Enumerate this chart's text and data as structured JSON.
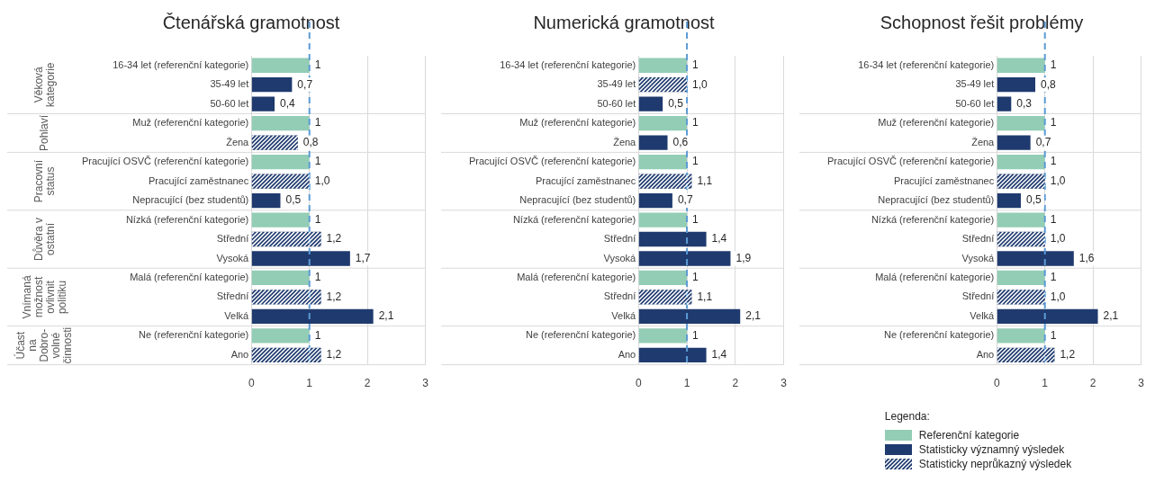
{
  "chart_data": [
    {
      "type": "bar",
      "orientation": "horizontal",
      "stacked": true,
      "title": "Čtenářská gramotnost",
      "categories": [
        "16-34 let (referenční kategorie)",
        "35-49 let",
        "50-60 let",
        "Muž (referenční kategorie)",
        "Žena",
        "Pracující OSVČ (referenční kategorie)",
        "Pracující zaměstnanec",
        "Nepracující (bez studentů)",
        "Nízká (referenční kategorie)",
        "Střední",
        "Vysoká",
        "Malá (referenční kategorie)",
        "Střední",
        "Velká",
        "Ne (referenční kategorie)",
        "Ano"
      ],
      "series": [
        {
          "color": "#93cdb6",
          "values": [
            1,
            null,
            null,
            1,
            null,
            1,
            null,
            null,
            1,
            null,
            null,
            1,
            null,
            null,
            1,
            null
          ],
          "value_labels": [
            "1",
            null,
            null,
            "1",
            null,
            "1",
            null,
            null,
            "1",
            null,
            null,
            "1",
            null,
            null,
            "1",
            null
          ]
        },
        {
          "color": "#1f3a6e",
          "values": [
            null,
            0.7,
            0.4,
            null,
            null,
            null,
            null,
            0.5,
            null,
            null,
            1.7,
            null,
            null,
            2.1,
            null,
            null
          ],
          "value_labels": [
            null,
            "0,7",
            "0,4",
            null,
            null,
            null,
            null,
            "0,5",
            null,
            null,
            "1,7",
            null,
            null,
            "2,1",
            null,
            null
          ]
        },
        {
          "color": "#1f3a6e",
          "values": [
            null,
            null,
            null,
            null,
            0.8,
            null,
            1.0,
            null,
            null,
            1.2,
            null,
            null,
            1.2,
            null,
            null,
            1.2
          ],
          "value_labels": [
            null,
            null,
            null,
            null,
            "0,8",
            null,
            "1,0",
            null,
            null,
            "1,2",
            null,
            null,
            "1,2",
            null,
            null,
            "1,2"
          ]
        }
      ],
      "xlim": [
        0,
        3
      ],
      "xticks": [
        0,
        1,
        2,
        3
      ],
      "grid": "x",
      "ref_lines": [
        {
          "axis": "x",
          "value": 1,
          "color": "#5b9bd5",
          "line_style": "dashed"
        }
      ],
      "annotations": [
        "Věková\nkategorie",
        "Pohlaví",
        "Pracovní\nstatus",
        "Důvěra v\nostatní",
        "Vnímaná\nmožnost\novlivnit\npolitiku",
        "Účast\nna\nDobro-\nvolné\nčinnosti"
      ]
    },
    {
      "type": "bar",
      "orientation": "horizontal",
      "stacked": true,
      "title": "Numerická gramotnost",
      "categories": [
        "16-34 let (referenční kategorie)",
        "35-49 let",
        "50-60 let",
        "Muž (referenční kategorie)",
        "Žena",
        "Pracující OSVČ (referenční kategorie)",
        "Pracující zaměstnanec",
        "Nepracující (bez studentů)",
        "Nízká (referenční kategorie)",
        "Střední",
        "Vysoká",
        "Malá (referenční kategorie)",
        "Střední",
        "Velká",
        "Ne (referenční kategorie)",
        "Ano"
      ],
      "series": [
        {
          "color": "#93cdb6",
          "values": [
            1,
            null,
            null,
            1,
            null,
            1,
            null,
            null,
            1,
            null,
            null,
            1,
            null,
            null,
            1,
            null
          ],
          "value_labels": [
            "1",
            null,
            null,
            "1",
            null,
            "1",
            null,
            null,
            "1",
            null,
            null,
            "1",
            null,
            null,
            "1",
            null
          ]
        },
        {
          "color": "#1f3a6e",
          "values": [
            null,
            null,
            0.5,
            null,
            0.6,
            null,
            null,
            0.7,
            null,
            1.4,
            1.9,
            null,
            null,
            2.1,
            null,
            1.4
          ],
          "value_labels": [
            null,
            null,
            "0,5",
            null,
            "0,6",
            null,
            null,
            "0,7",
            null,
            "1,4",
            "1,9",
            null,
            null,
            "2,1",
            null,
            "1,4"
          ]
        },
        {
          "color": "#1f3a6e",
          "values": [
            null,
            1.0,
            null,
            null,
            null,
            null,
            1.1,
            null,
            null,
            null,
            null,
            null,
            1.1,
            null,
            null,
            null
          ],
          "value_labels": [
            null,
            "1,0",
            null,
            null,
            null,
            null,
            "1,1",
            null,
            null,
            null,
            null,
            null,
            "1,1",
            null,
            null,
            null
          ]
        }
      ],
      "xlim": [
        0,
        3
      ],
      "xticks": [
        0,
        1,
        2,
        3
      ],
      "grid": "x",
      "ref_lines": [
        {
          "axis": "x",
          "value": 1,
          "color": "#5b9bd5",
          "line_style": "dashed"
        }
      ]
    },
    {
      "type": "bar",
      "orientation": "horizontal",
      "stacked": true,
      "title": "Schopnost řešit problémy",
      "categories": [
        "16-34 let (referenční kategorie)",
        "35-49 let",
        "50-60 let",
        "Muž (referenční kategorie)",
        "Žena",
        "Pracující OSVČ (referenční kategorie)",
        "Pracující zaměstnanec",
        "Nepracující (bez studentů)",
        "Nízká (referenční kategorie)",
        "Střední",
        "Vysoká",
        "Malá (referenční kategorie)",
        "Střední",
        "Velká",
        "Ne (referenční kategorie)",
        "Ano"
      ],
      "series": [
        {
          "name": "Referenční kategorie",
          "color": "#93cdb6",
          "values": [
            1,
            null,
            null,
            1,
            null,
            1,
            null,
            null,
            1,
            null,
            null,
            1,
            null,
            null,
            1,
            null
          ],
          "value_labels": [
            "1",
            null,
            null,
            "1",
            null,
            "1",
            null,
            null,
            "1",
            null,
            null,
            "1",
            null,
            null,
            "1",
            null
          ]
        },
        {
          "name": "Statisticky významný výsledek",
          "color": "#1f3a6e",
          "values": [
            null,
            0.8,
            0.3,
            null,
            0.7,
            null,
            null,
            0.5,
            null,
            null,
            1.6,
            null,
            null,
            2.1,
            null,
            null
          ],
          "value_labels": [
            null,
            "0,8",
            "0,3",
            null,
            "0,7",
            null,
            null,
            "0,5",
            null,
            null,
            "1,6",
            null,
            null,
            "2,1",
            null,
            null
          ]
        },
        {
          "name": "Statisticky neprůkazný výsledek",
          "color": "#1f3a6e",
          "values": [
            null,
            null,
            null,
            null,
            null,
            null,
            1.0,
            null,
            null,
            1.0,
            null,
            null,
            1.0,
            null,
            null,
            1.2
          ],
          "value_labels": [
            null,
            null,
            null,
            null,
            null,
            null,
            "1,0",
            null,
            null,
            "1,0",
            null,
            null,
            "1,0",
            null,
            null,
            "1,2"
          ]
        }
      ],
      "xlim": [
        0,
        3
      ],
      "xticks": [
        0,
        1,
        2,
        3
      ],
      "grid": "x",
      "legend": "bottom",
      "legend_title": "Legenda:",
      "ref_lines": [
        {
          "axis": "x",
          "value": 1,
          "color": "#5b9bd5",
          "line_style": "dashed"
        }
      ]
    }
  ]
}
